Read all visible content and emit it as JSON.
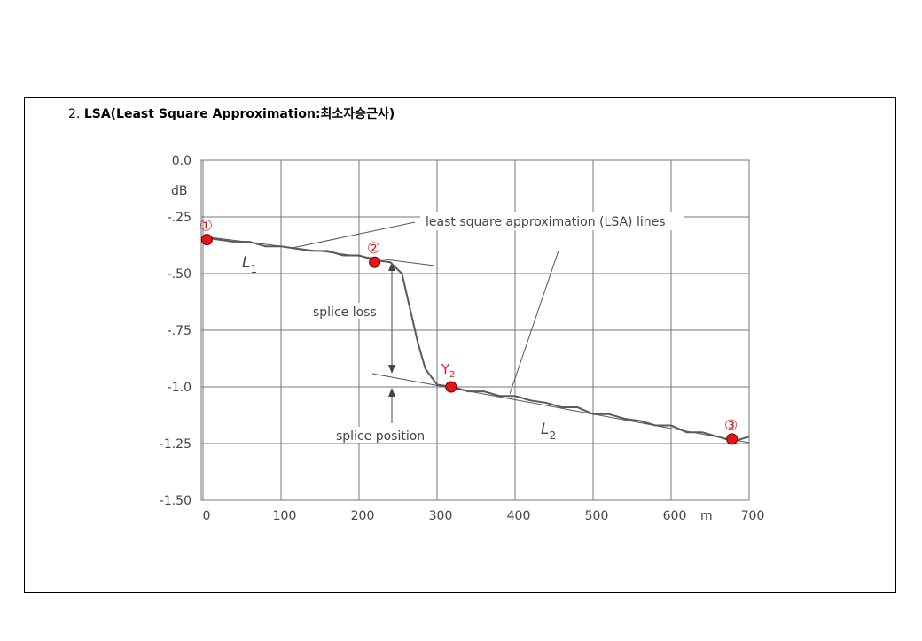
{
  "heading": {
    "number": "2.",
    "text": "LSA(Least Square Approximation:최소자승근사)"
  },
  "chart_data": {
    "type": "line",
    "y_unit": "dB",
    "x_unit": "m",
    "xlim": [
      0,
      700
    ],
    "xticks": [
      0,
      100,
      200,
      300,
      400,
      500,
      600,
      700
    ],
    "ylim": [
      -1.5,
      0
    ],
    "yticks": [
      {
        "value": 0,
        "label": "0.0"
      },
      {
        "value": -0.25,
        "label": "-.25"
      },
      {
        "value": -0.5,
        "label": "-.50"
      },
      {
        "value": -0.75,
        "label": "-.75"
      },
      {
        "value": -1,
        "label": "-1.0"
      },
      -1.25,
      {
        "value": -1.5,
        "label": "-1.50"
      }
    ],
    "grid": true,
    "series": [
      {
        "type": "line",
        "color": "#5a5a5a",
        "x": [
          0,
          20,
          40,
          60,
          80,
          100,
          120,
          140,
          160,
          180,
          200,
          220,
          240,
          255,
          265,
          275,
          285,
          300,
          320,
          340,
          360,
          380,
          400,
          420,
          440,
          460,
          480,
          500,
          520,
          540,
          560,
          580,
          600,
          620,
          640,
          660,
          680,
          700
        ],
        "values": [
          -0.34,
          -0.35,
          -0.36,
          -0.36,
          -0.38,
          -0.38,
          -0.39,
          -0.4,
          -0.4,
          -0.42,
          -0.42,
          -0.44,
          -0.45,
          -0.5,
          -0.65,
          -0.8,
          -0.92,
          -0.99,
          -1.0,
          -1.02,
          -1.02,
          -1.04,
          -1.04,
          -1.06,
          -1.07,
          -1.09,
          -1.09,
          -1.12,
          -1.12,
          -1.14,
          -1.15,
          -1.17,
          -1.17,
          -1.2,
          -1.2,
          -1.22,
          -1.24,
          -1.22
        ]
      },
      {
        "type": "scatter",
        "color": "#e8141c",
        "x": [
          5,
          220,
          318,
          678
        ],
        "values": [
          -0.35,
          -0.45,
          -1.0,
          -1.23
        ],
        "labels": [
          "①",
          "②",
          {
            "text": "Y",
            "sub": "2"
          },
          "③"
        ]
      }
    ],
    "annotations": {
      "lsa": "least square approximation (LSA) lines",
      "splice_loss": "splice loss",
      "splice_position": "splice position",
      "l1": {
        "text": "L",
        "sub": "1"
      },
      "l2": {
        "text": "L",
        "sub": "2"
      }
    }
  }
}
